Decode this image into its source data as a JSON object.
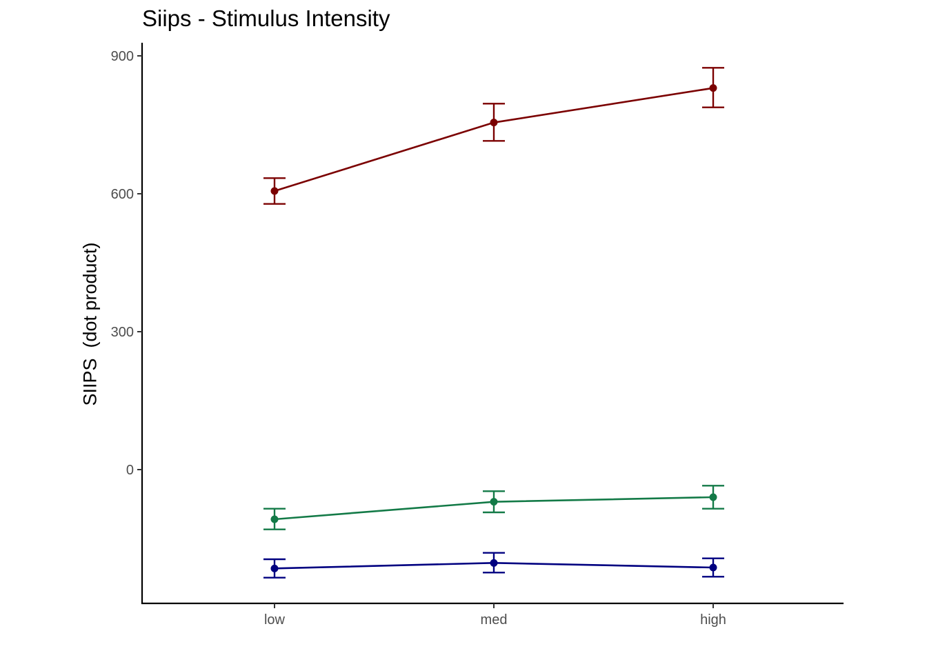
{
  "chart_data": {
    "type": "line",
    "title": "Siips - Stimulus Intensity",
    "xlabel": "",
    "ylabel": "SIIPS  (dot product)",
    "categories": [
      "low",
      "med",
      "high"
    ],
    "ylim": [
      -290,
      925
    ],
    "yticks": [
      0,
      300,
      600,
      900
    ],
    "grid": false,
    "legend": "none",
    "series": [
      {
        "color": "#7b0000",
        "values": [
          606,
          755,
          830
        ],
        "err_low": [
          578,
          715,
          788
        ],
        "err_high": [
          634,
          796,
          874
        ]
      },
      {
        "color": "#137a47",
        "values": [
          -108,
          -70,
          -60
        ],
        "err_low": [
          -130,
          -93,
          -85
        ],
        "err_high": [
          -85,
          -47,
          -35
        ]
      },
      {
        "color": "#000080",
        "values": [
          -215,
          -203,
          -213
        ],
        "err_low": [
          -235,
          -224,
          -233
        ],
        "err_high": [
          -195,
          -181,
          -193
        ]
      }
    ]
  }
}
